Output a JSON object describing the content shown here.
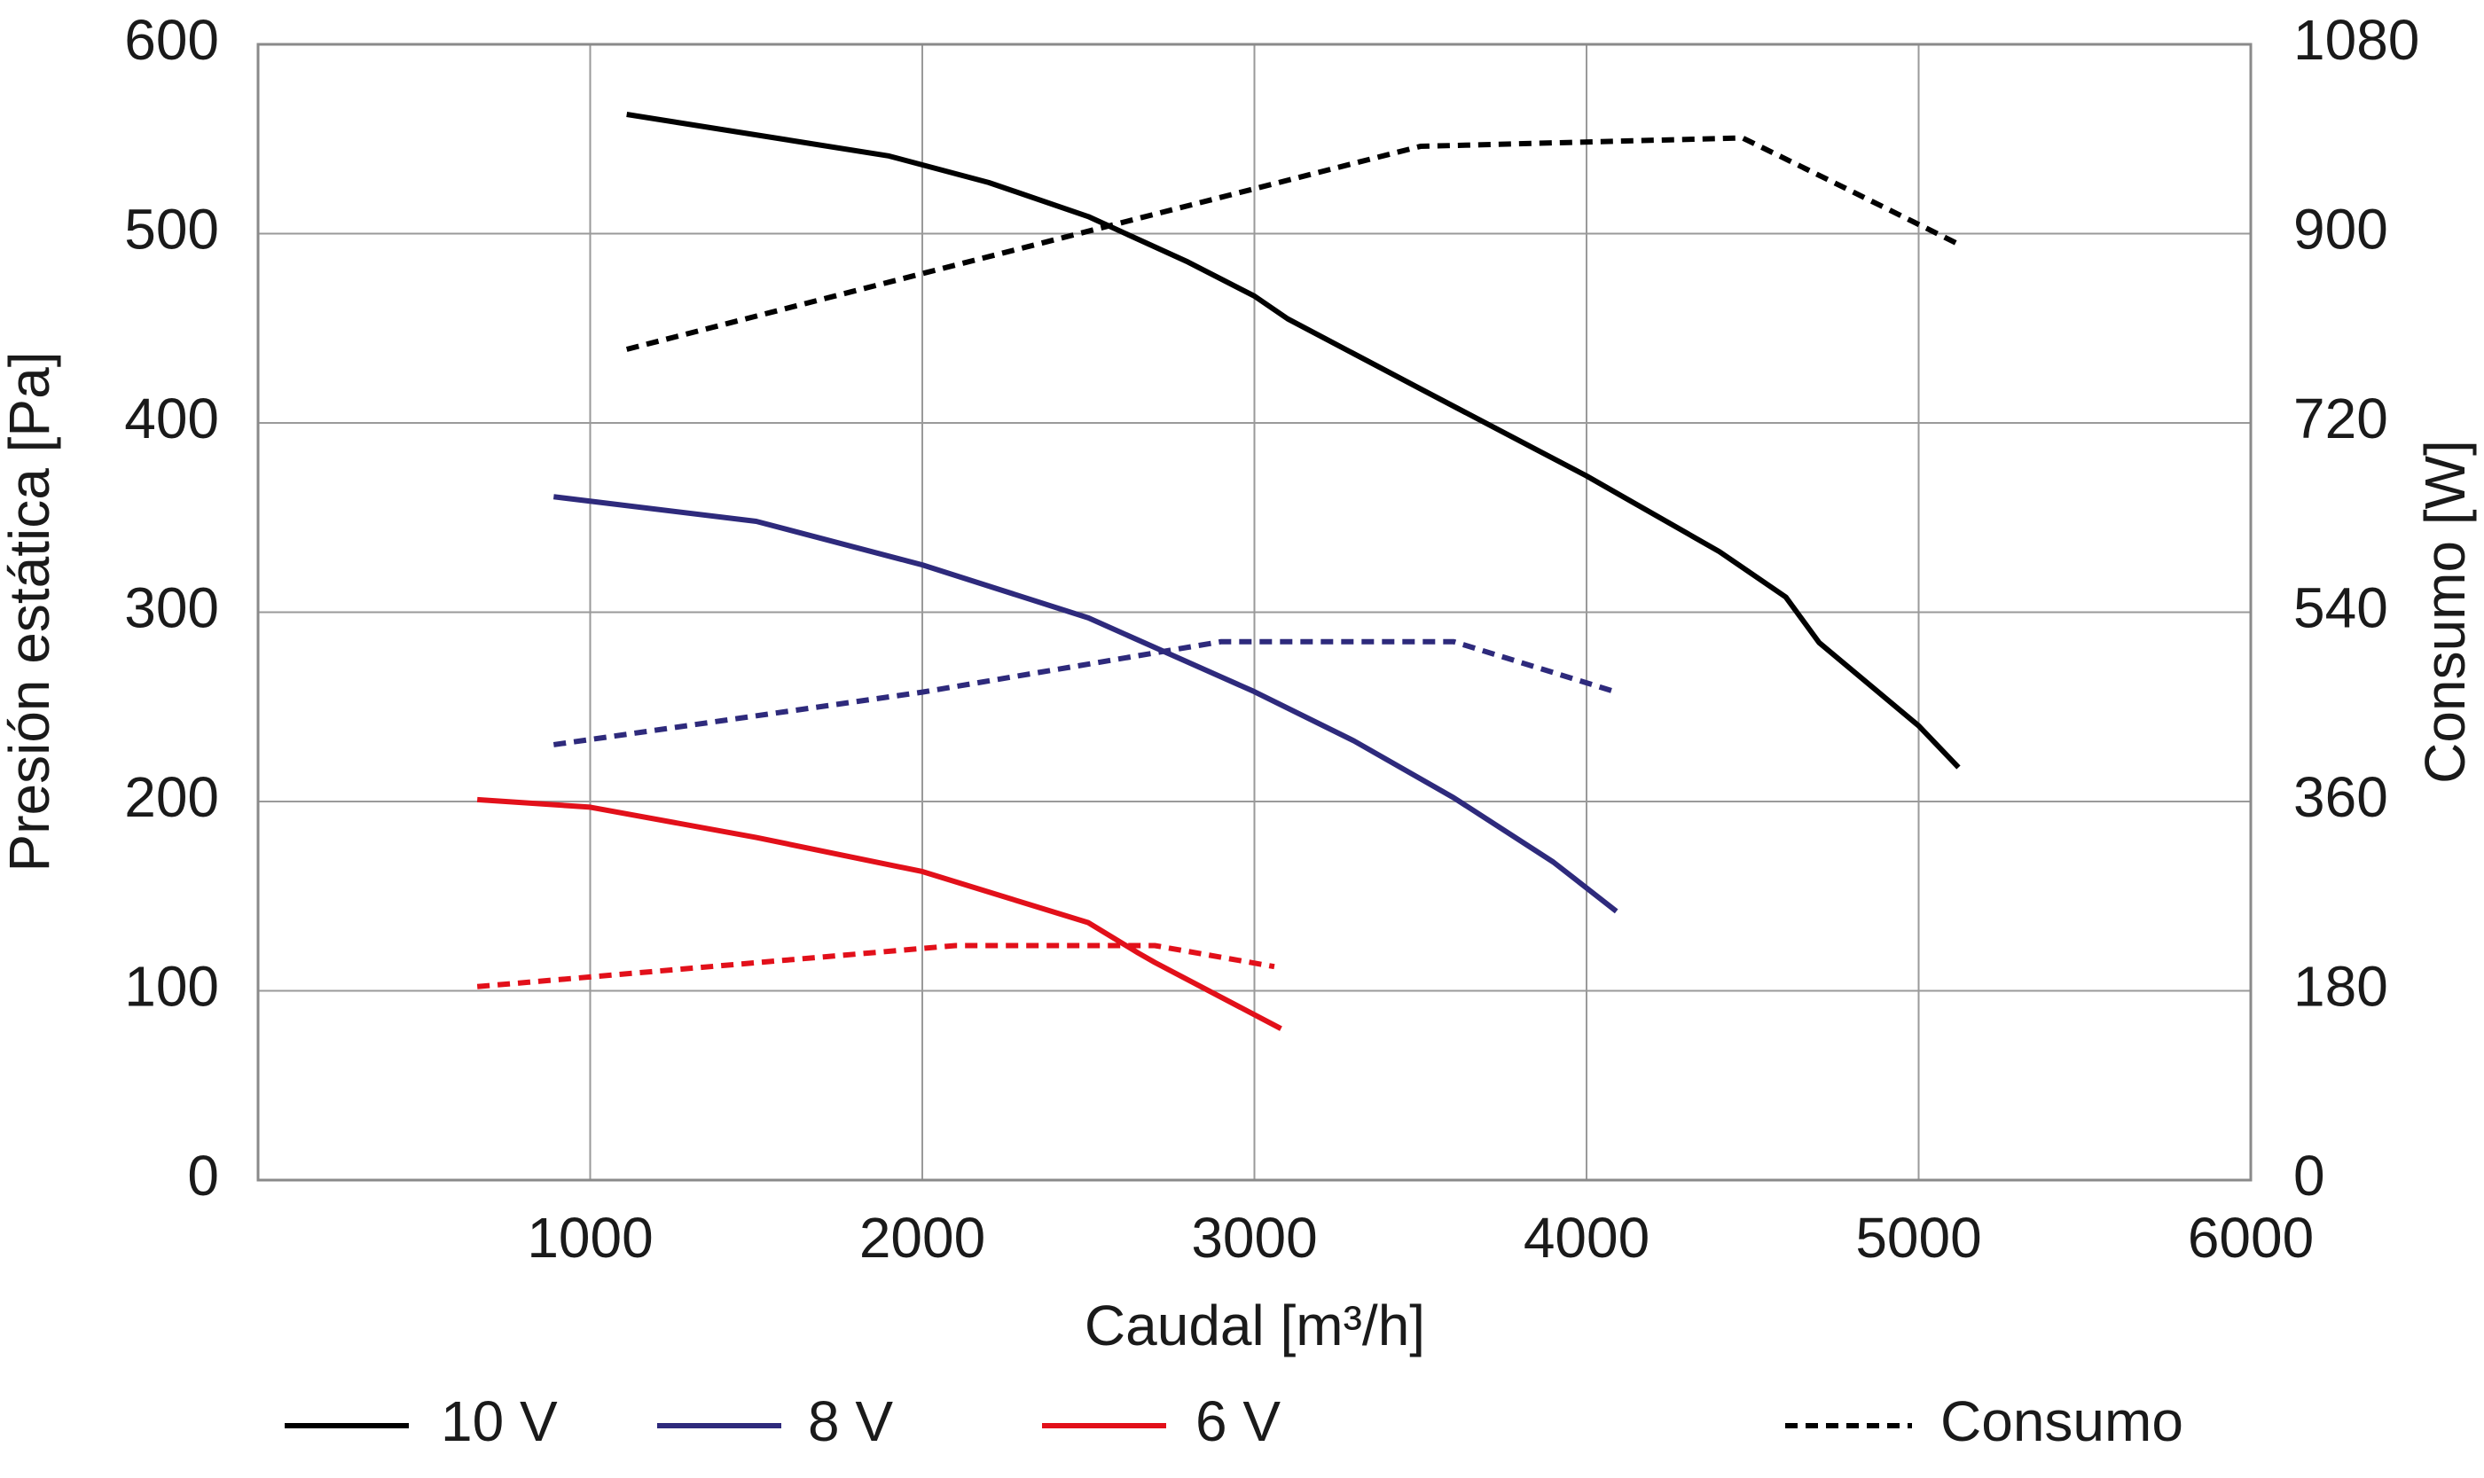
{
  "chart_data": {
    "type": "line",
    "xlabel": "Caudal [m³/h]",
    "ylabel": "Presión estática [Pa]",
    "y2label": "Consumo [W]",
    "xlim": [
      0,
      6000
    ],
    "xticks": [
      1000,
      2000,
      3000,
      4000,
      5000,
      6000
    ],
    "ylim": [
      0,
      600
    ],
    "yticks": [
      0,
      100,
      200,
      300,
      400,
      500,
      600
    ],
    "y2lim": [
      0,
      1080
    ],
    "y2ticks": [
      0,
      180,
      360,
      540,
      720,
      900,
      1080
    ],
    "grid": true,
    "legend": "bottom",
    "series": [
      {
        "name": "10 V",
        "color": "#000000",
        "x": [
          1110,
          1900,
          2200,
          2500,
          2800,
          3000,
          3100,
          3500,
          4000,
          4100,
          4400,
          4600,
          4700,
          5000,
          5120
        ],
        "values": [
          563,
          541,
          527,
          509,
          485,
          467,
          455,
          418,
          372,
          362,
          332,
          308,
          284,
          240,
          218
        ],
        "consumption": {
          "x": [
            1110,
            2000,
            3500,
            4470,
            4800,
            5120
          ],
          "values": [
            790,
            862,
            983,
            991,
            940,
            890
          ]
        }
      },
      {
        "name": "8 V",
        "color": "#2e2a7c",
        "x": [
          890,
          1500,
          2000,
          2500,
          3000,
          3300,
          3600,
          3900,
          4090
        ],
        "values": [
          361,
          348,
          325,
          297,
          258,
          232,
          202,
          168,
          142
        ],
        "consumption": {
          "x": [
            890,
            2000,
            2900,
            3600,
            4090
          ],
          "values": [
            414,
            464,
            512,
            512,
            464
          ]
        }
      },
      {
        "name": "6 V",
        "color": "#e2101a",
        "x": [
          660,
          1000,
          1500,
          2000,
          2500,
          2650,
          2700,
          3080
        ],
        "values": [
          201,
          197,
          181,
          163,
          136,
          120,
          115,
          80
        ],
        "consumption": {
          "x": [
            660,
            2100,
            2700,
            3060
          ],
          "values": [
            184,
            223,
            223,
            203
          ]
        }
      }
    ],
    "consumption_label": "Consumo",
    "consumption_dash": "dashed",
    "consumption_axis": "y2"
  }
}
